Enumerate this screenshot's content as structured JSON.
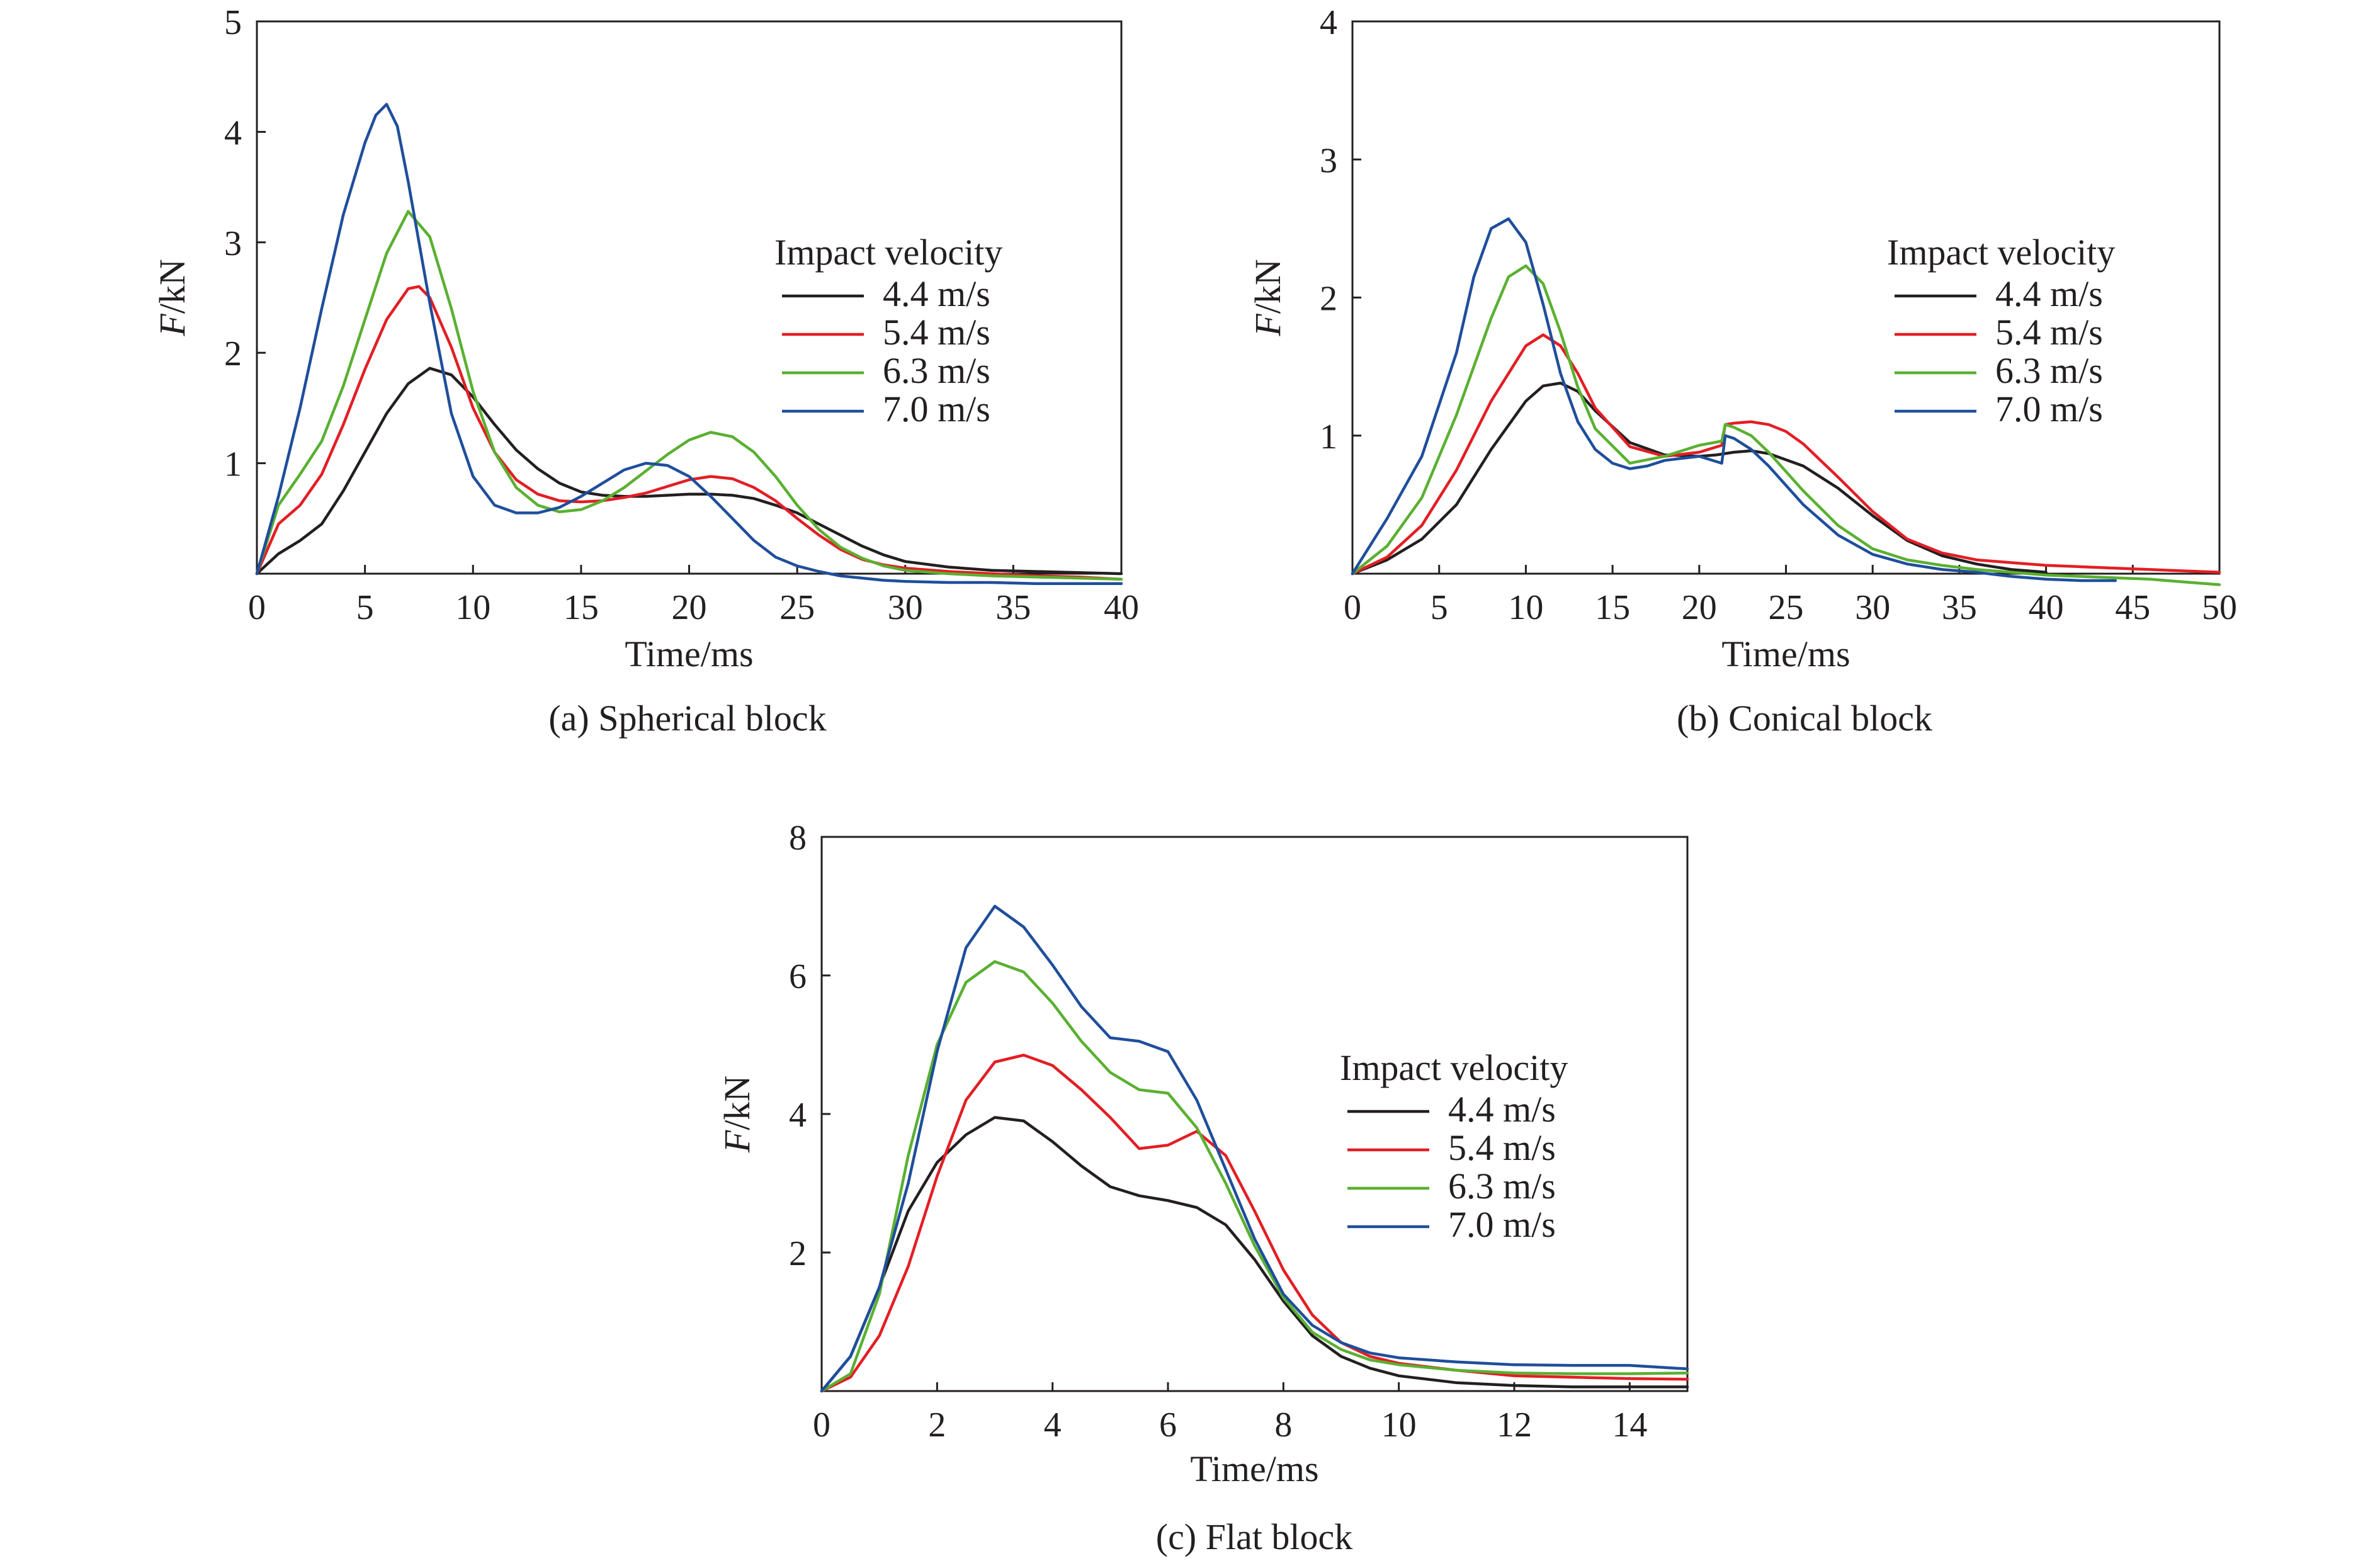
{
  "chart_data": [
    {
      "type": "line",
      "caption": "(a) Spherical block",
      "xlabel": "Time/ms",
      "ylabel_italic": "F",
      "ylabel_rest": "/kN",
      "xlim": [
        0,
        40
      ],
      "ylim": [
        0,
        5
      ],
      "xticks": [
        0,
        5,
        10,
        15,
        20,
        25,
        30,
        35,
        40
      ],
      "yticks": [
        1,
        2,
        3,
        4,
        5
      ],
      "grid": false,
      "legend_placement": "right",
      "legend_title": "Impact velocity",
      "series": [
        {
          "name": "4.4 m/s",
          "color": "#231f20",
          "x": [
            0,
            1,
            2,
            3,
            4,
            5,
            6,
            7,
            8,
            9,
            10,
            11,
            12,
            13,
            14,
            15,
            16,
            17,
            18,
            19,
            20,
            21,
            22,
            23,
            24,
            25,
            26,
            27,
            28,
            29,
            30,
            32,
            34,
            36,
            38,
            40
          ],
          "y": [
            0,
            0.18,
            0.3,
            0.45,
            0.75,
            1.1,
            1.45,
            1.72,
            1.86,
            1.8,
            1.6,
            1.35,
            1.12,
            0.95,
            0.82,
            0.74,
            0.71,
            0.7,
            0.7,
            0.71,
            0.72,
            0.72,
            0.71,
            0.68,
            0.62,
            0.55,
            0.45,
            0.35,
            0.25,
            0.17,
            0.11,
            0.06,
            0.03,
            0.02,
            0.01,
            0
          ]
        },
        {
          "name": "5.4 m/s",
          "color": "#e31e24",
          "x": [
            0,
            1,
            2,
            3,
            4,
            5,
            6,
            7,
            7.5,
            8,
            9,
            10,
            11,
            12,
            13,
            14,
            15,
            16,
            17,
            18,
            19,
            20,
            21,
            22,
            23,
            24,
            25,
            26,
            27,
            28,
            29,
            30,
            32,
            34,
            36,
            38,
            40
          ],
          "y": [
            0,
            0.45,
            0.62,
            0.9,
            1.35,
            1.85,
            2.3,
            2.58,
            2.6,
            2.5,
            2.05,
            1.5,
            1.1,
            0.85,
            0.72,
            0.66,
            0.65,
            0.66,
            0.69,
            0.73,
            0.79,
            0.85,
            0.88,
            0.86,
            0.78,
            0.66,
            0.5,
            0.35,
            0.22,
            0.13,
            0.08,
            0.05,
            0.02,
            0,
            -0.02,
            -0.03,
            -0.05
          ]
        },
        {
          "name": "6.3 m/s",
          "color": "#5ab031",
          "x": [
            0,
            1,
            2,
            3,
            4,
            5,
            6,
            7,
            8,
            9,
            10,
            11,
            12,
            13,
            14,
            15,
            16,
            17,
            18,
            19,
            20,
            21,
            22,
            23,
            24,
            25,
            26,
            27,
            28,
            29,
            30,
            32,
            34,
            36,
            38,
            40
          ],
          "y": [
            0,
            0.62,
            0.9,
            1.2,
            1.7,
            2.3,
            2.9,
            3.28,
            3.05,
            2.4,
            1.65,
            1.1,
            0.78,
            0.62,
            0.56,
            0.58,
            0.66,
            0.78,
            0.93,
            1.08,
            1.21,
            1.28,
            1.24,
            1.1,
            0.88,
            0.62,
            0.4,
            0.24,
            0.14,
            0.07,
            0.03,
            0,
            -0.02,
            -0.03,
            -0.04,
            -0.05
          ]
        },
        {
          "name": "7.0 m/s",
          "color": "#1f4e9c",
          "x": [
            0,
            1,
            2,
            3,
            4,
            5,
            5.5,
            6,
            6.5,
            7,
            8,
            9,
            10,
            11,
            12,
            13,
            14,
            15,
            16,
            17,
            18,
            19,
            20,
            21,
            22,
            23,
            24,
            25,
            26,
            27,
            28,
            29,
            30,
            32,
            34,
            36,
            38,
            40
          ],
          "y": [
            0,
            0.7,
            1.5,
            2.4,
            3.25,
            3.9,
            4.15,
            4.25,
            4.05,
            3.55,
            2.45,
            1.45,
            0.88,
            0.62,
            0.55,
            0.55,
            0.6,
            0.7,
            0.82,
            0.94,
            1.0,
            0.98,
            0.88,
            0.7,
            0.5,
            0.3,
            0.15,
            0.07,
            0.02,
            -0.02,
            -0.04,
            -0.06,
            -0.07,
            -0.08,
            -0.08,
            -0.09,
            -0.09,
            -0.09
          ]
        }
      ]
    },
    {
      "type": "line",
      "caption": "(b) Conical block",
      "xlabel": "Time/ms",
      "ylabel_italic": "F",
      "ylabel_rest": "/kN",
      "xlim": [
        0,
        50
      ],
      "ylim": [
        0,
        4
      ],
      "xticks": [
        0,
        5,
        10,
        15,
        20,
        25,
        30,
        35,
        40,
        45,
        50
      ],
      "yticks": [
        1,
        2,
        3,
        4
      ],
      "grid": false,
      "legend_placement": "right",
      "legend_title": "Impact velocity",
      "series": [
        {
          "name": "4.4 m/s",
          "color": "#231f20",
          "x": [
            0,
            2,
            4,
            6,
            8,
            10,
            11,
            12,
            13,
            14,
            16,
            18,
            20,
            21,
            22,
            23,
            24,
            26,
            28,
            30,
            32,
            34,
            36,
            38,
            40
          ],
          "y": [
            0,
            0.1,
            0.25,
            0.5,
            0.9,
            1.25,
            1.36,
            1.38,
            1.32,
            1.18,
            0.95,
            0.86,
            0.85,
            0.86,
            0.88,
            0.89,
            0.87,
            0.78,
            0.62,
            0.42,
            0.24,
            0.13,
            0.07,
            0.03,
            0.01
          ]
        },
        {
          "name": "5.4 m/s",
          "color": "#e31e24",
          "x": [
            0,
            2,
            4,
            6,
            8,
            10,
            11,
            12,
            13,
            14,
            16,
            18,
            20,
            21.3,
            21.5,
            22,
            23,
            24,
            25,
            26,
            28,
            30,
            32,
            34,
            36,
            38,
            40,
            42,
            44,
            46,
            48,
            50
          ],
          "y": [
            0,
            0.12,
            0.35,
            0.75,
            1.25,
            1.65,
            1.73,
            1.65,
            1.45,
            1.2,
            0.92,
            0.85,
            0.88,
            0.93,
            1.08,
            1.09,
            1.1,
            1.08,
            1.03,
            0.94,
            0.7,
            0.45,
            0.25,
            0.15,
            0.1,
            0.08,
            0.06,
            0.05,
            0.04,
            0.03,
            0.02,
            0.01
          ]
        },
        {
          "name": "6.3 m/s",
          "color": "#5ab031",
          "x": [
            0,
            2,
            4,
            6,
            8,
            9,
            10,
            11,
            12,
            13,
            14,
            16,
            18,
            20,
            21.3,
            21.5,
            22,
            23,
            24,
            26,
            28,
            30,
            32,
            34,
            36,
            38,
            40,
            42,
            44,
            46,
            48,
            50
          ],
          "y": [
            0,
            0.2,
            0.55,
            1.15,
            1.85,
            2.15,
            2.23,
            2.1,
            1.75,
            1.35,
            1.05,
            0.8,
            0.85,
            0.93,
            0.96,
            1.08,
            1.06,
            1.0,
            0.88,
            0.6,
            0.35,
            0.18,
            0.1,
            0.06,
            0.03,
            0.01,
            -0.01,
            -0.02,
            -0.03,
            -0.04,
            -0.06,
            -0.08
          ]
        },
        {
          "name": "7.0 m/s",
          "color": "#1f4e9c",
          "x": [
            0,
            2,
            4,
            6,
            7,
            8,
            9,
            10,
            11,
            12,
            13,
            14,
            15,
            16,
            17,
            18,
            20,
            21.3,
            21.5,
            22,
            23,
            24,
            26,
            28,
            30,
            32,
            34,
            36,
            38,
            40,
            42,
            44
          ],
          "y": [
            0,
            0.4,
            0.85,
            1.6,
            2.15,
            2.5,
            2.57,
            2.4,
            1.95,
            1.45,
            1.1,
            0.9,
            0.8,
            0.76,
            0.78,
            0.82,
            0.85,
            0.8,
            1.0,
            0.98,
            0.9,
            0.78,
            0.5,
            0.28,
            0.14,
            0.07,
            0.03,
            0.01,
            -0.02,
            -0.04,
            -0.05,
            -0.05
          ]
        }
      ]
    },
    {
      "type": "line",
      "caption": "(c) Flat block",
      "xlabel": "Time/ms",
      "ylabel_italic": "F",
      "ylabel_rest": "/kN",
      "xlim": [
        0,
        15
      ],
      "ylim": [
        0,
        8
      ],
      "xticks": [
        0,
        2,
        4,
        6,
        8,
        10,
        12,
        14
      ],
      "yticks": [
        2,
        4,
        6,
        8
      ],
      "grid": false,
      "legend_placement": "right",
      "legend_title": "Impact velocity",
      "series": [
        {
          "name": "4.4 m/s",
          "color": "#231f20",
          "x": [
            0,
            0.5,
            1,
            1.5,
            2,
            2.5,
            3,
            3.5,
            4,
            4.5,
            5,
            5.5,
            6,
            6.5,
            7,
            7.5,
            8,
            8.5,
            9,
            9.5,
            10,
            11,
            12,
            13,
            14,
            15
          ],
          "y": [
            0,
            0.5,
            1.5,
            2.6,
            3.3,
            3.7,
            3.95,
            3.9,
            3.6,
            3.25,
            2.95,
            2.82,
            2.75,
            2.65,
            2.4,
            1.9,
            1.3,
            0.8,
            0.5,
            0.33,
            0.22,
            0.12,
            0.08,
            0.06,
            0.06,
            0.06
          ]
        },
        {
          "name": "5.4 m/s",
          "color": "#e31e24",
          "x": [
            0,
            0.5,
            1,
            1.5,
            2,
            2.5,
            3,
            3.5,
            4,
            4.5,
            5,
            5.5,
            6,
            6.5,
            7,
            7.5,
            8,
            8.5,
            9,
            9.5,
            10,
            11,
            12,
            13,
            14,
            15
          ],
          "y": [
            0,
            0.2,
            0.8,
            1.8,
            3.1,
            4.2,
            4.75,
            4.85,
            4.7,
            4.35,
            3.95,
            3.5,
            3.55,
            3.75,
            3.4,
            2.6,
            1.75,
            1.1,
            0.7,
            0.5,
            0.4,
            0.3,
            0.22,
            0.2,
            0.18,
            0.17
          ]
        },
        {
          "name": "6.3 m/s",
          "color": "#5ab031",
          "x": [
            0,
            0.5,
            1,
            1.5,
            2,
            2.5,
            3,
            3.5,
            4,
            4.5,
            5,
            5.5,
            6,
            6.5,
            7,
            7.5,
            8,
            8.5,
            9,
            9.5,
            10,
            11,
            12,
            13,
            14,
            15
          ],
          "y": [
            0,
            0.25,
            1.4,
            3.4,
            5.0,
            5.9,
            6.2,
            6.05,
            5.6,
            5.05,
            4.6,
            4.35,
            4.3,
            3.8,
            3.0,
            2.1,
            1.35,
            0.85,
            0.6,
            0.45,
            0.38,
            0.3,
            0.26,
            0.25,
            0.25,
            0.26
          ]
        },
        {
          "name": "7.0 m/s",
          "color": "#1f4e9c",
          "x": [
            0,
            0.5,
            1,
            1.5,
            2,
            2.5,
            3,
            3.5,
            4,
            4.5,
            5,
            5.5,
            6,
            6.5,
            7,
            7.5,
            8,
            8.5,
            9,
            9.5,
            10,
            11,
            12,
            13,
            14,
            15
          ],
          "y": [
            0,
            0.5,
            1.5,
            3.0,
            4.9,
            6.4,
            7.0,
            6.7,
            6.15,
            5.55,
            5.1,
            5.05,
            4.9,
            4.2,
            3.2,
            2.2,
            1.4,
            0.95,
            0.7,
            0.55,
            0.48,
            0.42,
            0.38,
            0.37,
            0.37,
            0.32
          ]
        }
      ]
    }
  ]
}
